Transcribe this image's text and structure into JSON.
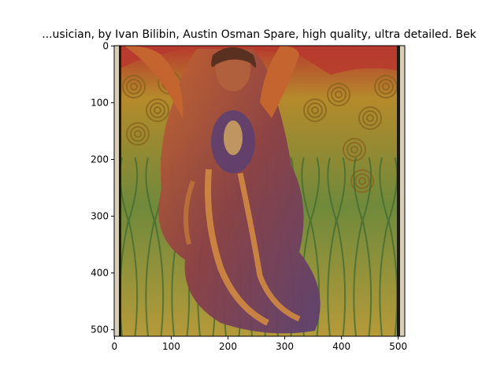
{
  "chart_data": {
    "type": "image",
    "title": "...usician,  by Ivan Bilibin, Austin Osman Spare, high quality, ultra detailed. Bek",
    "xlabel": "",
    "ylabel": "",
    "xlim": [
      -0.5,
      511.5
    ],
    "ylim": [
      511.5,
      -0.5
    ],
    "x_ticks": [
      0,
      100,
      200,
      300,
      400,
      500
    ],
    "y_ticks": [
      0,
      100,
      200,
      300,
      400,
      500
    ],
    "x_tick_labels": [
      "0",
      "100",
      "200",
      "300",
      "400",
      "500"
    ],
    "y_tick_labels": [
      "0",
      "100",
      "200",
      "300",
      "400",
      "500"
    ],
    "image_description": "Art-nouveau style painting of a figure with raised arms in a red and purple robe, surrounded by swirling golden and green tendrils",
    "colors": {
      "red": "#b73a2e",
      "orange": "#c4642f",
      "gold": "#b58a2b",
      "green": "#4f7a3c",
      "purple": "#5a3f72",
      "frame_light": "#d9cfb8",
      "frame_dark": "#1c1a14"
    }
  }
}
